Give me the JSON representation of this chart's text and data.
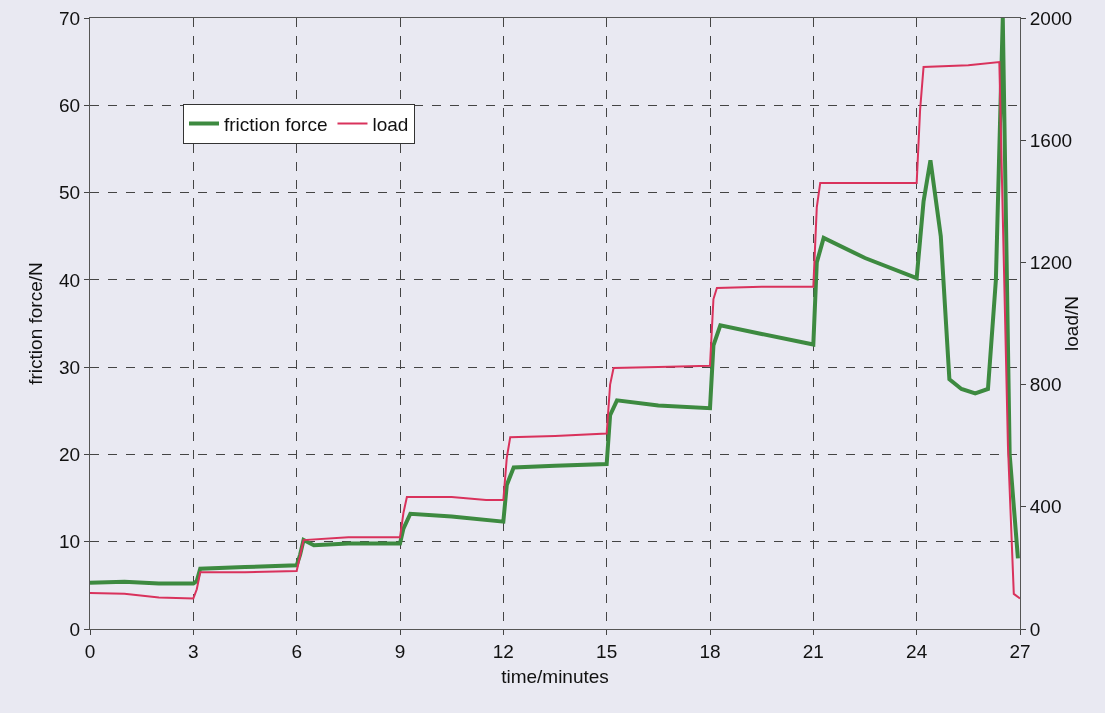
{
  "chart_data": {
    "type": "line",
    "xlabel": "time/minutes",
    "ylabel": "friction force/N",
    "y2label": "load/N",
    "xlim": [
      0,
      27
    ],
    "xticks": [
      0,
      3,
      6,
      9,
      12,
      15,
      18,
      21,
      24,
      27
    ],
    "ylim": [
      0,
      70
    ],
    "yticks": [
      0,
      10,
      20,
      30,
      40,
      50,
      60,
      70
    ],
    "y2lim": [
      0,
      2000
    ],
    "y2ticks": [
      0,
      400,
      800,
      1200,
      1600,
      2000
    ],
    "grid": true,
    "legend": "top left",
    "line_style": "solid",
    "marker": "none",
    "series": [
      {
        "name": "friction force",
        "color": "#3d8a40",
        "x": [
          0,
          1,
          2,
          3,
          3.1,
          3.2,
          4.5,
          6,
          6.1,
          6.2,
          6.5,
          7.5,
          9,
          9.1,
          9.3,
          10.5,
          12,
          12.1,
          12.3,
          13.5,
          15,
          15.1,
          15.3,
          16.5,
          18,
          18.1,
          18.3,
          19.5,
          21,
          21.1,
          21.3,
          22.5,
          24,
          24.2,
          24.4,
          24.7,
          24.95,
          25.3,
          25.7,
          26.07,
          26.3,
          26.5,
          26.7,
          26.94
        ],
        "values": [
          5.3,
          5.4,
          5.2,
          5.2,
          5.5,
          6.9,
          7.1,
          7.3,
          8.5,
          10.2,
          9.6,
          9.8,
          9.8,
          11.5,
          13.2,
          12.9,
          12.3,
          16.5,
          18.5,
          18.7,
          18.9,
          24.5,
          26.2,
          25.6,
          25.3,
          32.5,
          34.8,
          33.8,
          32.6,
          42,
          44.8,
          42.5,
          40.2,
          49,
          53.7,
          45,
          28.6,
          27.5,
          27,
          27.5,
          40,
          70,
          20,
          8.1
        ]
      },
      {
        "name": "load",
        "color": "#d9325c",
        "x": [
          0,
          1,
          2,
          3,
          3.1,
          3.2,
          4.5,
          6,
          6.1,
          6.2,
          7.5,
          9,
          9.1,
          9.2,
          10.5,
          11.5,
          12,
          12.1,
          12.2,
          13.5,
          15,
          15.1,
          15.2,
          16.5,
          18,
          18.1,
          18.2,
          19.5,
          21,
          21.1,
          21.2,
          22.5,
          24,
          24.1,
          24.2,
          25.5,
          26.4,
          26.65,
          26.82,
          27
        ],
        "values": [
          118,
          115,
          103,
          100,
          130,
          186,
          186,
          190,
          240,
          291,
          300,
          300,
          380,
          432,
          432,
          422,
          422,
          560,
          628,
          632,
          640,
          800,
          854,
          858,
          862,
          1080,
          1116,
          1120,
          1120,
          1380,
          1460,
          1460,
          1460,
          1700,
          1840,
          1845,
          1856,
          600,
          115,
          100
        ],
        "axis": "y2"
      }
    ]
  }
}
